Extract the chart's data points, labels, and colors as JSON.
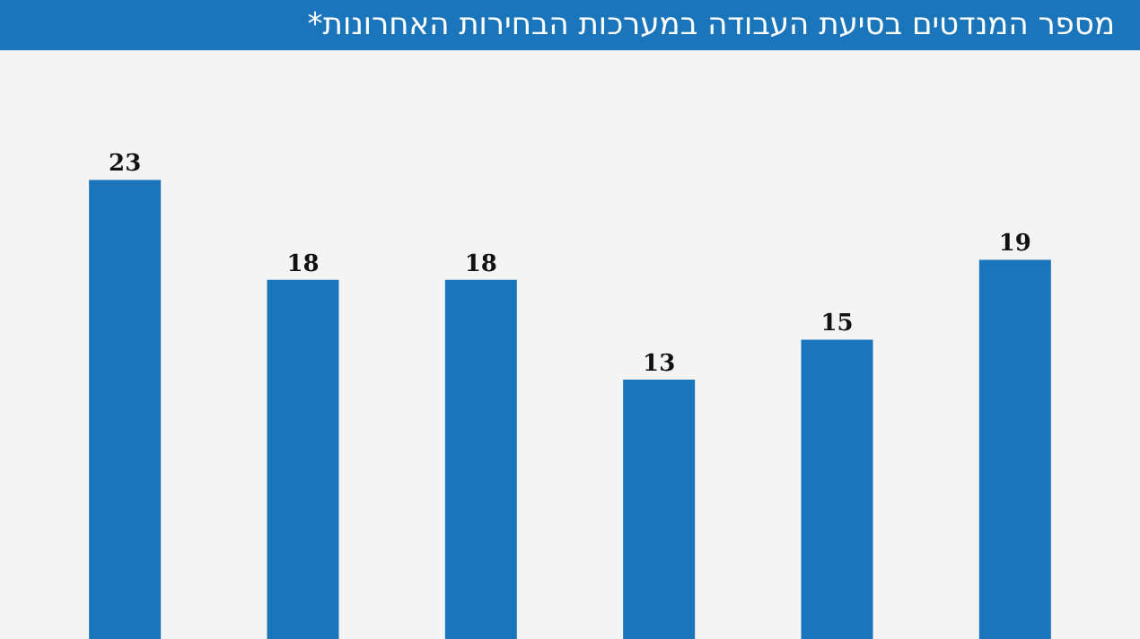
{
  "chart_data": {
    "type": "bar",
    "title": "מספר המנדטים בסיעת העבודה במערכות הבחירות האחרונות*",
    "categories": [
      null,
      null,
      null,
      null,
      null,
      null
    ],
    "values": [
      23,
      18,
      18,
      13,
      15,
      19
    ],
    "color": "#1b75bb",
    "data_labels": true
  }
}
